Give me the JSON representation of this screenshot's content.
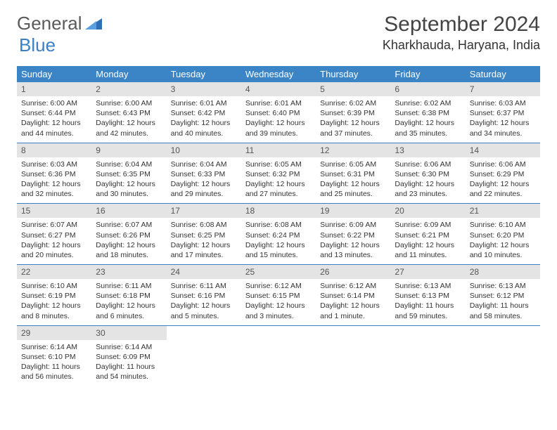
{
  "brand": {
    "word1": "General",
    "word2": "Blue"
  },
  "header": {
    "month_title": "September 2024",
    "location": "Kharkhauda, Haryana, India"
  },
  "colors": {
    "header_bg": "#3b85c6",
    "header_text": "#ffffff",
    "daynum_bg": "#e4e4e4",
    "row_divider": "#3b7fc4",
    "body_text": "#333333",
    "logo_gray": "#5a5a5a",
    "logo_blue": "#3b7fc4"
  },
  "weekdays": [
    "Sunday",
    "Monday",
    "Tuesday",
    "Wednesday",
    "Thursday",
    "Friday",
    "Saturday"
  ],
  "weeks": [
    [
      {
        "n": "1",
        "sr": "6:00 AM",
        "ss": "6:44 PM",
        "dl": "12 hours and 44 minutes."
      },
      {
        "n": "2",
        "sr": "6:00 AM",
        "ss": "6:43 PM",
        "dl": "12 hours and 42 minutes."
      },
      {
        "n": "3",
        "sr": "6:01 AM",
        "ss": "6:42 PM",
        "dl": "12 hours and 40 minutes."
      },
      {
        "n": "4",
        "sr": "6:01 AM",
        "ss": "6:40 PM",
        "dl": "12 hours and 39 minutes."
      },
      {
        "n": "5",
        "sr": "6:02 AM",
        "ss": "6:39 PM",
        "dl": "12 hours and 37 minutes."
      },
      {
        "n": "6",
        "sr": "6:02 AM",
        "ss": "6:38 PM",
        "dl": "12 hours and 35 minutes."
      },
      {
        "n": "7",
        "sr": "6:03 AM",
        "ss": "6:37 PM",
        "dl": "12 hours and 34 minutes."
      }
    ],
    [
      {
        "n": "8",
        "sr": "6:03 AM",
        "ss": "6:36 PM",
        "dl": "12 hours and 32 minutes."
      },
      {
        "n": "9",
        "sr": "6:04 AM",
        "ss": "6:35 PM",
        "dl": "12 hours and 30 minutes."
      },
      {
        "n": "10",
        "sr": "6:04 AM",
        "ss": "6:33 PM",
        "dl": "12 hours and 29 minutes."
      },
      {
        "n": "11",
        "sr": "6:05 AM",
        "ss": "6:32 PM",
        "dl": "12 hours and 27 minutes."
      },
      {
        "n": "12",
        "sr": "6:05 AM",
        "ss": "6:31 PM",
        "dl": "12 hours and 25 minutes."
      },
      {
        "n": "13",
        "sr": "6:06 AM",
        "ss": "6:30 PM",
        "dl": "12 hours and 23 minutes."
      },
      {
        "n": "14",
        "sr": "6:06 AM",
        "ss": "6:29 PM",
        "dl": "12 hours and 22 minutes."
      }
    ],
    [
      {
        "n": "15",
        "sr": "6:07 AM",
        "ss": "6:27 PM",
        "dl": "12 hours and 20 minutes."
      },
      {
        "n": "16",
        "sr": "6:07 AM",
        "ss": "6:26 PM",
        "dl": "12 hours and 18 minutes."
      },
      {
        "n": "17",
        "sr": "6:08 AM",
        "ss": "6:25 PM",
        "dl": "12 hours and 17 minutes."
      },
      {
        "n": "18",
        "sr": "6:08 AM",
        "ss": "6:24 PM",
        "dl": "12 hours and 15 minutes."
      },
      {
        "n": "19",
        "sr": "6:09 AM",
        "ss": "6:22 PM",
        "dl": "12 hours and 13 minutes."
      },
      {
        "n": "20",
        "sr": "6:09 AM",
        "ss": "6:21 PM",
        "dl": "12 hours and 11 minutes."
      },
      {
        "n": "21",
        "sr": "6:10 AM",
        "ss": "6:20 PM",
        "dl": "12 hours and 10 minutes."
      }
    ],
    [
      {
        "n": "22",
        "sr": "6:10 AM",
        "ss": "6:19 PM",
        "dl": "12 hours and 8 minutes."
      },
      {
        "n": "23",
        "sr": "6:11 AM",
        "ss": "6:18 PM",
        "dl": "12 hours and 6 minutes."
      },
      {
        "n": "24",
        "sr": "6:11 AM",
        "ss": "6:16 PM",
        "dl": "12 hours and 5 minutes."
      },
      {
        "n": "25",
        "sr": "6:12 AM",
        "ss": "6:15 PM",
        "dl": "12 hours and 3 minutes."
      },
      {
        "n": "26",
        "sr": "6:12 AM",
        "ss": "6:14 PM",
        "dl": "12 hours and 1 minute."
      },
      {
        "n": "27",
        "sr": "6:13 AM",
        "ss": "6:13 PM",
        "dl": "11 hours and 59 minutes."
      },
      {
        "n": "28",
        "sr": "6:13 AM",
        "ss": "6:12 PM",
        "dl": "11 hours and 58 minutes."
      }
    ],
    [
      {
        "n": "29",
        "sr": "6:14 AM",
        "ss": "6:10 PM",
        "dl": "11 hours and 56 minutes."
      },
      {
        "n": "30",
        "sr": "6:14 AM",
        "ss": "6:09 PM",
        "dl": "11 hours and 54 minutes."
      },
      null,
      null,
      null,
      null,
      null
    ]
  ],
  "labels": {
    "sunrise": "Sunrise:",
    "sunset": "Sunset:",
    "daylight": "Daylight:"
  }
}
